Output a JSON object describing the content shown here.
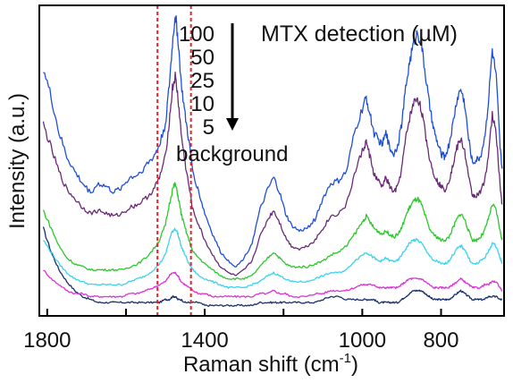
{
  "chart_data": {
    "type": "line",
    "title": "MTX detection (µM)",
    "xlabel": "Raman shift (cm",
    "xlabel_sup": "-1",
    "xlabel_close": ")",
    "ylabel": "Intensity (a.u.)",
    "x_reversed": true,
    "xlim": [
      1820,
      640
    ],
    "ylim": [
      0,
      100
    ],
    "x_ticks": [
      1800,
      1600,
      1400,
      1200,
      1000,
      800
    ],
    "x_tick_labels": [
      "1800",
      "1400",
      "1000",
      "800"
    ],
    "x_tick_label_values": [
      1800,
      1400,
      1000,
      800
    ],
    "grid": false,
    "legend_entries": [
      "100",
      "50",
      "25",
      "10",
      "5",
      "background"
    ],
    "arrow": "down",
    "reference_lines": [
      1520,
      1435
    ],
    "reference_line_color": "#e8202a",
    "x": [
      1810,
      1790,
      1770,
      1750,
      1730,
      1710,
      1690,
      1670,
      1650,
      1630,
      1610,
      1590,
      1570,
      1550,
      1530,
      1515,
      1500,
      1490,
      1482,
      1475,
      1468,
      1460,
      1450,
      1440,
      1430,
      1415,
      1400,
      1380,
      1360,
      1340,
      1320,
      1300,
      1280,
      1260,
      1240,
      1225,
      1210,
      1195,
      1180,
      1160,
      1140,
      1120,
      1100,
      1080,
      1060,
      1040,
      1020,
      1000,
      990,
      980,
      970,
      960,
      950,
      940,
      930,
      920,
      910,
      900,
      890,
      880,
      870,
      860,
      850,
      840,
      830,
      820,
      810,
      800,
      790,
      780,
      770,
      760,
      750,
      740,
      730,
      720,
      710,
      700,
      690,
      680,
      670,
      660,
      650,
      645
    ],
    "series": [
      {
        "name": "100",
        "color": "#1f4fd6",
        "values": [
          82,
          72,
          60,
          52,
          47,
          43,
          40,
          43,
          42,
          40,
          42,
          45,
          46,
          49,
          52,
          56,
          63,
          76,
          90,
          100,
          92,
          77,
          66,
          57,
          47,
          40,
          33,
          26,
          20,
          17,
          15,
          18,
          23,
          34,
          41,
          45,
          40,
          33,
          29,
          27,
          28,
          31,
          38,
          43,
          44,
          47,
          60,
          68,
          72,
          66,
          60,
          58,
          56,
          60,
          55,
          53,
          56,
          63,
          75,
          84,
          90,
          94,
          90,
          80,
          70,
          62,
          57,
          53,
          52,
          56,
          63,
          71,
          75,
          70,
          58,
          50,
          51,
          52,
          58,
          70,
          88,
          79,
          55,
          48
        ]
      },
      {
        "name": "50",
        "color": "#6a2a77",
        "values": [
          63,
          55,
          47,
          41,
          38,
          35,
          33,
          34,
          33,
          32,
          33,
          35,
          36,
          38,
          41,
          45,
          52,
          64,
          75,
          79,
          72,
          60,
          50,
          42,
          34,
          29,
          24,
          19,
          15,
          13,
          12,
          14,
          17,
          25,
          31,
          34,
          30,
          25,
          22,
          21,
          22,
          24,
          28,
          32,
          33,
          36,
          46,
          54,
          57,
          52,
          46,
          44,
          42,
          45,
          42,
          40,
          42,
          48,
          58,
          65,
          70,
          72,
          68,
          60,
          52,
          47,
          44,
          42,
          41,
          44,
          49,
          55,
          58,
          54,
          45,
          39,
          39,
          40,
          44,
          52,
          66,
          60,
          42,
          36
        ]
      },
      {
        "name": "25",
        "color": "#2cc82c",
        "values": [
          34,
          28,
          22,
          18,
          16,
          15,
          14,
          14,
          14,
          14,
          14,
          15,
          16,
          18,
          21,
          24,
          29,
          36,
          41,
          43,
          39,
          33,
          28,
          24,
          20,
          18,
          16,
          14,
          12,
          11,
          11,
          11,
          12,
          15,
          18,
          20,
          18,
          16,
          15,
          15,
          15,
          16,
          17,
          19,
          20,
          22,
          26,
          30,
          32,
          30,
          28,
          27,
          26,
          27,
          26,
          25,
          26,
          28,
          32,
          35,
          37,
          38,
          36,
          32,
          28,
          26,
          25,
          24,
          24,
          25,
          28,
          31,
          33,
          31,
          27,
          24,
          24,
          25,
          27,
          31,
          36,
          34,
          27,
          24
        ]
      },
      {
        "name": "10",
        "color": "#3bd3ee",
        "values": [
          24,
          20,
          16,
          13,
          11,
          10,
          9,
          9,
          9,
          9,
          9,
          10,
          11,
          12,
          14,
          16,
          19,
          24,
          27,
          28,
          26,
          22,
          19,
          16,
          14,
          12,
          11,
          10,
          9,
          8,
          8,
          8,
          9,
          10,
          12,
          13,
          12,
          11,
          10,
          10,
          10,
          11,
          12,
          13,
          13,
          14,
          17,
          19,
          20,
          19,
          18,
          17,
          17,
          18,
          17,
          17,
          17,
          19,
          21,
          23,
          24,
          24,
          23,
          21,
          19,
          17,
          17,
          16,
          16,
          17,
          19,
          21,
          22,
          21,
          18,
          16,
          16,
          17,
          18,
          20,
          23,
          22,
          18,
          16
        ]
      },
      {
        "name": "5",
        "color": "#e030d8",
        "values": [
          14,
          11,
          9,
          7,
          6,
          6,
          5,
          5,
          5,
          5,
          5,
          6,
          6,
          7,
          8,
          9,
          10,
          12,
          13,
          13,
          12,
          10,
          9,
          8,
          7,
          6,
          6,
          5,
          5,
          5,
          5,
          5,
          5,
          6,
          6,
          7,
          6,
          6,
          5,
          5,
          5,
          6,
          6,
          7,
          7,
          7,
          8,
          9,
          9,
          9,
          9,
          8,
          8,
          8,
          8,
          8,
          8,
          9,
          10,
          11,
          11,
          11,
          11,
          10,
          9,
          8,
          8,
          8,
          8,
          8,
          9,
          10,
          11,
          10,
          9,
          8,
          8,
          8,
          9,
          9,
          10,
          10,
          8,
          7
        ]
      },
      {
        "name": "background",
        "color": "#1a2f6e",
        "values": [
          28,
          20,
          14,
          10,
          7,
          5,
          4,
          3,
          3,
          3,
          3,
          3,
          3,
          3,
          3,
          3,
          4,
          4,
          5,
          5,
          4,
          4,
          3,
          3,
          3,
          3,
          2,
          2,
          2,
          2,
          2,
          2,
          2,
          3,
          3,
          3,
          3,
          3,
          3,
          3,
          3,
          3,
          4,
          5,
          5,
          4,
          4,
          4,
          4,
          4,
          4,
          3,
          3,
          3,
          3,
          3,
          3,
          4,
          5,
          6,
          7,
          7,
          7,
          6,
          5,
          4,
          4,
          4,
          4,
          4,
          5,
          6,
          7,
          6,
          5,
          4,
          4,
          4,
          4,
          5,
          5,
          5,
          4,
          4
        ]
      }
    ]
  }
}
